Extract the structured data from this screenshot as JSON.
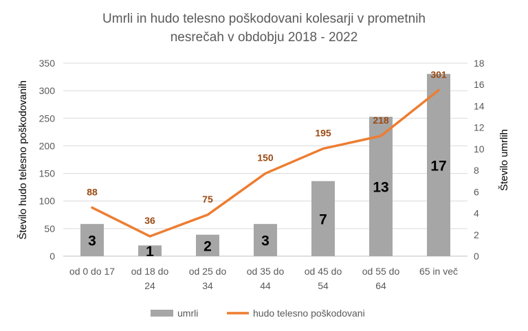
{
  "chart_data": {
    "type": "bar",
    "title_lines": [
      "Umrli in hudo telesno poškodovani kolesarji v prometnih",
      "nesrečah v obdobju 2018 - 2022"
    ],
    "categories": [
      [
        "od 0 do 17"
      ],
      [
        "od 18 do",
        "24"
      ],
      [
        "od 25 do",
        "34"
      ],
      [
        "od 35 do",
        "44"
      ],
      [
        "od 45 do",
        "54"
      ],
      [
        "od 55 do",
        "64"
      ],
      [
        "65 in več"
      ]
    ],
    "ylabel_left": "Število hudo telesno poškodovanih",
    "ylabel_right": "Število umrlih",
    "ylim_left": [
      0,
      350
    ],
    "yticks_left": [
      0,
      50,
      100,
      150,
      200,
      250,
      300,
      350
    ],
    "ylim_right": [
      0,
      18
    ],
    "yticks_right": [
      0,
      2,
      4,
      6,
      8,
      10,
      12,
      14,
      16,
      18
    ],
    "grid": true,
    "legend_position": "bottom",
    "series": [
      {
        "name": "umrli",
        "type": "bar",
        "axis": "right",
        "color": "#a6a6a6",
        "values": [
          3,
          1,
          2,
          3,
          7,
          13,
          17
        ]
      },
      {
        "name": "hudo telesno poškodovani",
        "type": "line",
        "axis": "left",
        "color": "#ed7d31",
        "values": [
          88,
          36,
          75,
          150,
          195,
          218,
          301
        ]
      }
    ]
  }
}
